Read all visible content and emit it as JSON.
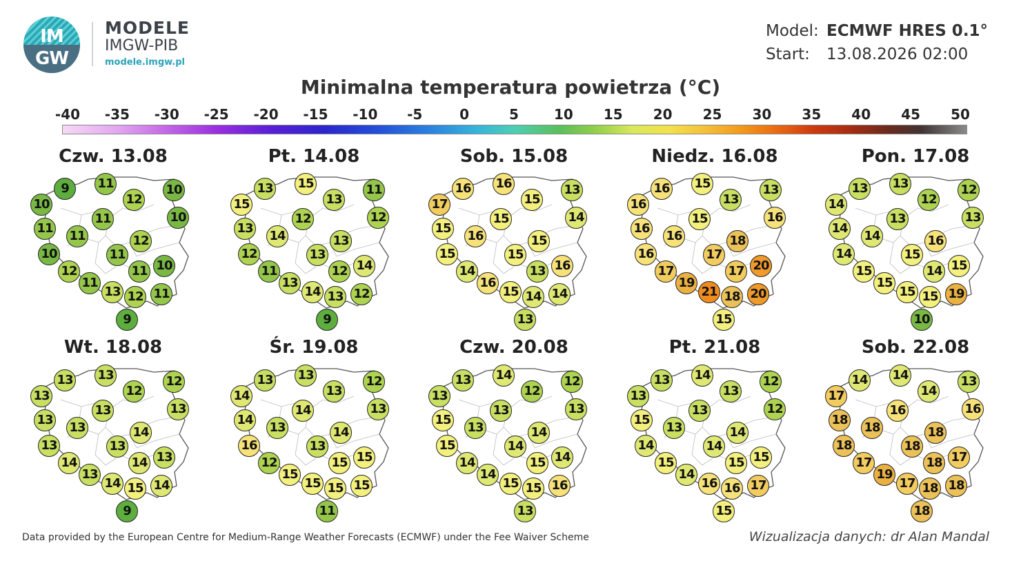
{
  "header": {
    "logo_text_top": "IM",
    "logo_text_bottom": "GW",
    "brand_line1": "MODELE",
    "brand_line2": "IMGW-PIB",
    "brand_url": "modele.imgw.pl"
  },
  "meta": {
    "model_label": "Model:",
    "model_value": "ECMWF HRES 0.1°",
    "start_label": "Start:",
    "start_value": "13.08.2026 02:00"
  },
  "title": "Minimalna temperatura powietrza (°C)",
  "scale_ticks": [
    "-40",
    "-35",
    "-30",
    "-25",
    "-20",
    "-15",
    "-10",
    "-5",
    "0",
    "5",
    "10",
    "15",
    "20",
    "25",
    "30",
    "35",
    "40",
    "45",
    "50"
  ],
  "days": [
    {
      "label": "Czw. 13.08",
      "values": [
        9,
        11,
        10,
        10,
        12,
        10,
        11,
        11,
        11,
        12,
        10,
        11,
        10,
        12,
        11,
        11,
        13,
        12,
        11,
        9
      ]
    },
    {
      "label": "Pt. 14.08",
      "values": [
        13,
        15,
        11,
        15,
        13,
        12,
        12,
        13,
        14,
        13,
        12,
        13,
        14,
        11,
        12,
        13,
        14,
        13,
        12,
        9
      ]
    },
    {
      "label": "Sob. 15.08",
      "values": [
        16,
        16,
        13,
        17,
        15,
        14,
        15,
        15,
        16,
        15,
        15,
        15,
        16,
        14,
        13,
        16,
        15,
        14,
        14,
        13
      ]
    },
    {
      "label": "Niedz. 16.08",
      "values": [
        16,
        15,
        13,
        16,
        13,
        16,
        15,
        16,
        16,
        18,
        16,
        17,
        20,
        17,
        17,
        19,
        21,
        18,
        20,
        15
      ]
    },
    {
      "label": "Pon. 17.08",
      "values": [
        13,
        13,
        12,
        14,
        12,
        13,
        13,
        14,
        14,
        16,
        14,
        15,
        15,
        15,
        14,
        15,
        15,
        15,
        19,
        10
      ]
    },
    {
      "label": "Wt. 18.08",
      "values": [
        13,
        13,
        12,
        13,
        12,
        13,
        13,
        13,
        13,
        14,
        13,
        13,
        13,
        14,
        14,
        13,
        14,
        15,
        14,
        9
      ]
    },
    {
      "label": "Śr. 19.08",
      "values": [
        13,
        13,
        12,
        14,
        13,
        13,
        14,
        14,
        13,
        14,
        16,
        13,
        15,
        12,
        15,
        15,
        15,
        15,
        15,
        11
      ]
    },
    {
      "label": "Czw. 20.08",
      "values": [
        13,
        14,
        12,
        13,
        12,
        13,
        13,
        15,
        13,
        14,
        15,
        14,
        14,
        14,
        15,
        14,
        15,
        15,
        16,
        13
      ]
    },
    {
      "label": "Pt. 21.08",
      "values": [
        13,
        14,
        12,
        13,
        13,
        12,
        13,
        15,
        13,
        14,
        14,
        14,
        15,
        15,
        15,
        14,
        16,
        16,
        17,
        15
      ]
    },
    {
      "label": "Sob. 22.08",
      "values": [
        14,
        14,
        13,
        17,
        14,
        16,
        16,
        18,
        18,
        18,
        18,
        18,
        17,
        17,
        18,
        19,
        17,
        18,
        18,
        18
      ]
    }
  ],
  "footer": {
    "data_note": "Data provided by the European Centre for Medium-Range Weather Forecasts (ECMWF) under the Fee Waiver Scheme",
    "credit": "Wizualizacja danych: dr Alan Mandal"
  }
}
